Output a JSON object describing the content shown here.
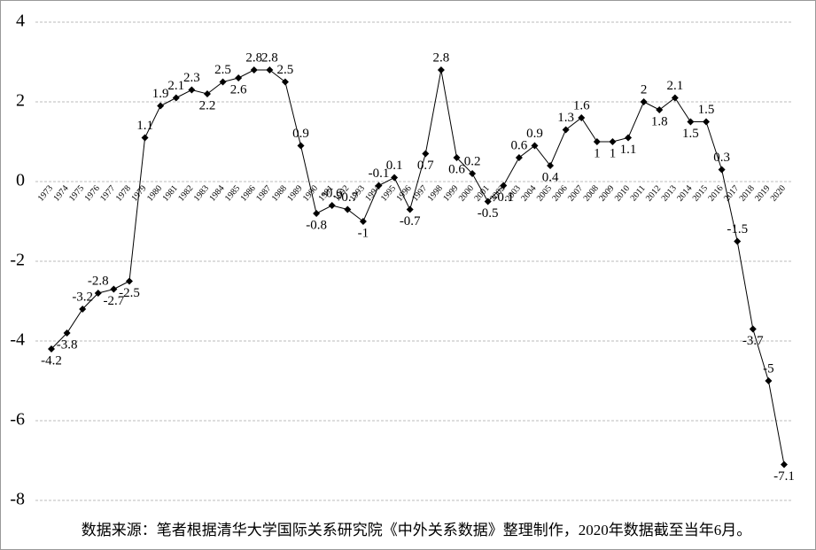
{
  "chart_data": {
    "type": "line",
    "categories": [
      "1973",
      "1974",
      "1975",
      "1976",
      "1977",
      "1978",
      "1979",
      "1980",
      "1981",
      "1982",
      "1983",
      "1984",
      "1985",
      "1986",
      "1987",
      "1988",
      "1989",
      "1990",
      "1991",
      "1992",
      "1993",
      "1994",
      "1995",
      "1996",
      "1997",
      "1998",
      "1999",
      "2000",
      "2001",
      "2002",
      "2003",
      "2004",
      "2005",
      "2006",
      "2007",
      "2008",
      "2009",
      "2010",
      "2011",
      "2012",
      "2013",
      "2014",
      "2015",
      "2016",
      "2017",
      "2018",
      "2019",
      "2020"
    ],
    "values": [
      -4.2,
      -3.8,
      -3.2,
      -2.8,
      -2.7,
      -2.5,
      1.1,
      1.9,
      2.1,
      2.3,
      2.2,
      2.5,
      2.6,
      2.8,
      2.8,
      2.5,
      0.9,
      -0.8,
      -0.6,
      -0.7,
      -1,
      -0.1,
      0.1,
      -0.7,
      0.7,
      2.8,
      0.6,
      0.2,
      -0.5,
      -0.1,
      0.6,
      0.9,
      0.4,
      1.3,
      1.6,
      1,
      1,
      1.1,
      2,
      1.8,
      2.1,
      1.5,
      1.5,
      0.3,
      -1.5,
      -3.7,
      -5,
      -7.1
    ],
    "color": "#000000",
    "ylim": [
      -8,
      4
    ],
    "yticks": [
      4,
      2,
      0,
      -2,
      -4,
      -6,
      -8
    ],
    "grid": true,
    "note": "数据来源：笔者根据清华大学国际关系研究院《中外关系数据》整理制作，2020年数据截至当年6月。"
  }
}
